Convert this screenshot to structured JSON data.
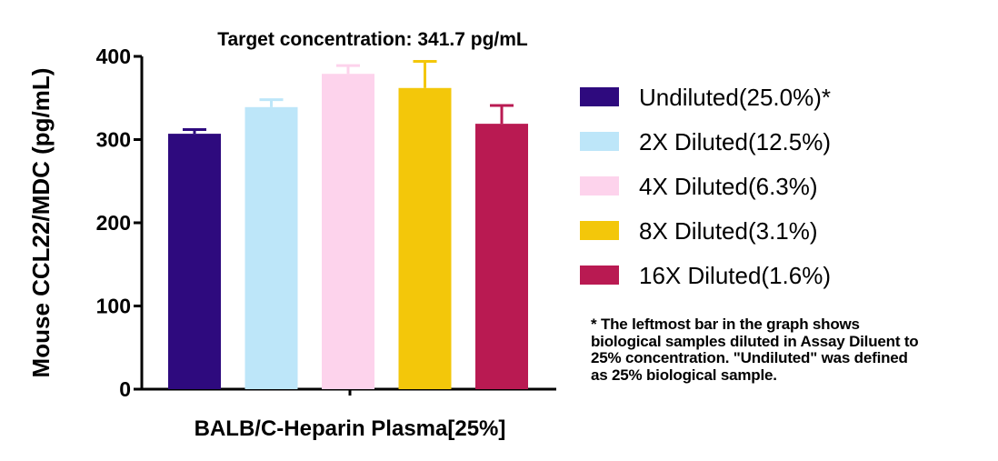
{
  "chart_data": {
    "type": "bar",
    "title": "Target concentration: 341.7 pg/mL",
    "xlabel": "BALB/C-Heparin Plasma[25%]",
    "ylabel": "Mouse CCL22/MDC (pg/mL)",
    "ylim": [
      0,
      400
    ],
    "yticks": [
      "0",
      "100",
      "200",
      "300",
      "400"
    ],
    "legend_position": "right",
    "series": [
      {
        "name": "Undiluted(25.0%)*",
        "value": 307,
        "error": 5,
        "color": "#2e0a7e"
      },
      {
        "name": "2X Diluted(12.5%)",
        "value": 339,
        "error": 9,
        "color": "#bde6f9"
      },
      {
        "name": "4X Diluted(6.3%)",
        "value": 379,
        "error": 10,
        "color": "#fdd3ec"
      },
      {
        "name": "8X Diluted(3.1%)",
        "value": 362,
        "error": 32,
        "color": "#f3c70a"
      },
      {
        "name": "16X Diluted(1.6%)",
        "value": 319,
        "error": 22,
        "color": "#b91a52"
      }
    ]
  },
  "footnote": "* The leftmost bar in the graph shows\nbiological samples diluted in Assay Diluent to\n25% concentration. \"Undiluted\" was defined\nas 25% biological sample."
}
